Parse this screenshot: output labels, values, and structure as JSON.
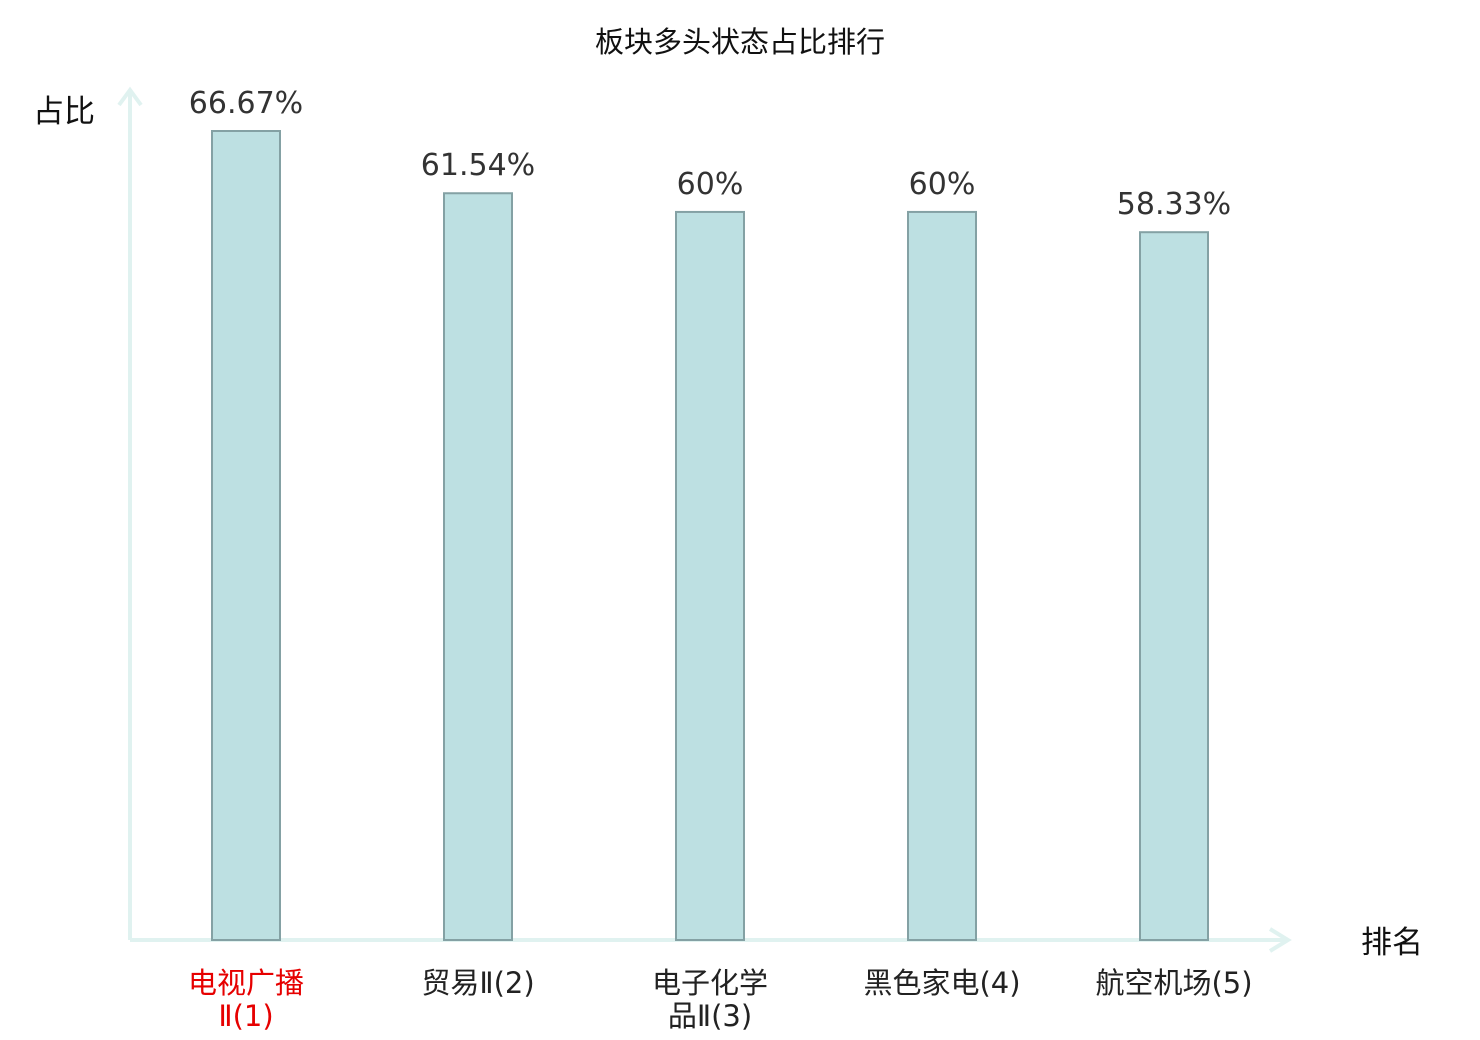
{
  "chart_data": {
    "type": "bar",
    "title": "板块多头状态占比排行",
    "xlabel": "排名",
    "ylabel": "占比",
    "categories": [
      [
        "电视广播",
        "Ⅱ(1)"
      ],
      [
        "贸易Ⅱ(2)"
      ],
      [
        "电子化学",
        "品Ⅱ(3)"
      ],
      [
        "黑色家电(4)"
      ],
      [
        "航空机场(5)"
      ]
    ],
    "values": [
      66.67,
      61.54,
      60,
      60,
      58.33
    ],
    "value_labels": [
      "66.67%",
      "61.54%",
      "60%",
      "60%",
      "58.33%"
    ],
    "ylim": [
      0,
      70
    ],
    "highlight_index": 0,
    "grid": false,
    "legend": "none"
  },
  "colors": {
    "bar_fill": "#bde0e2",
    "bar_stroke": "#84a1a4",
    "axis": "#e0f2f0",
    "highlight_text": "#e60000",
    "text": "#222222"
  }
}
